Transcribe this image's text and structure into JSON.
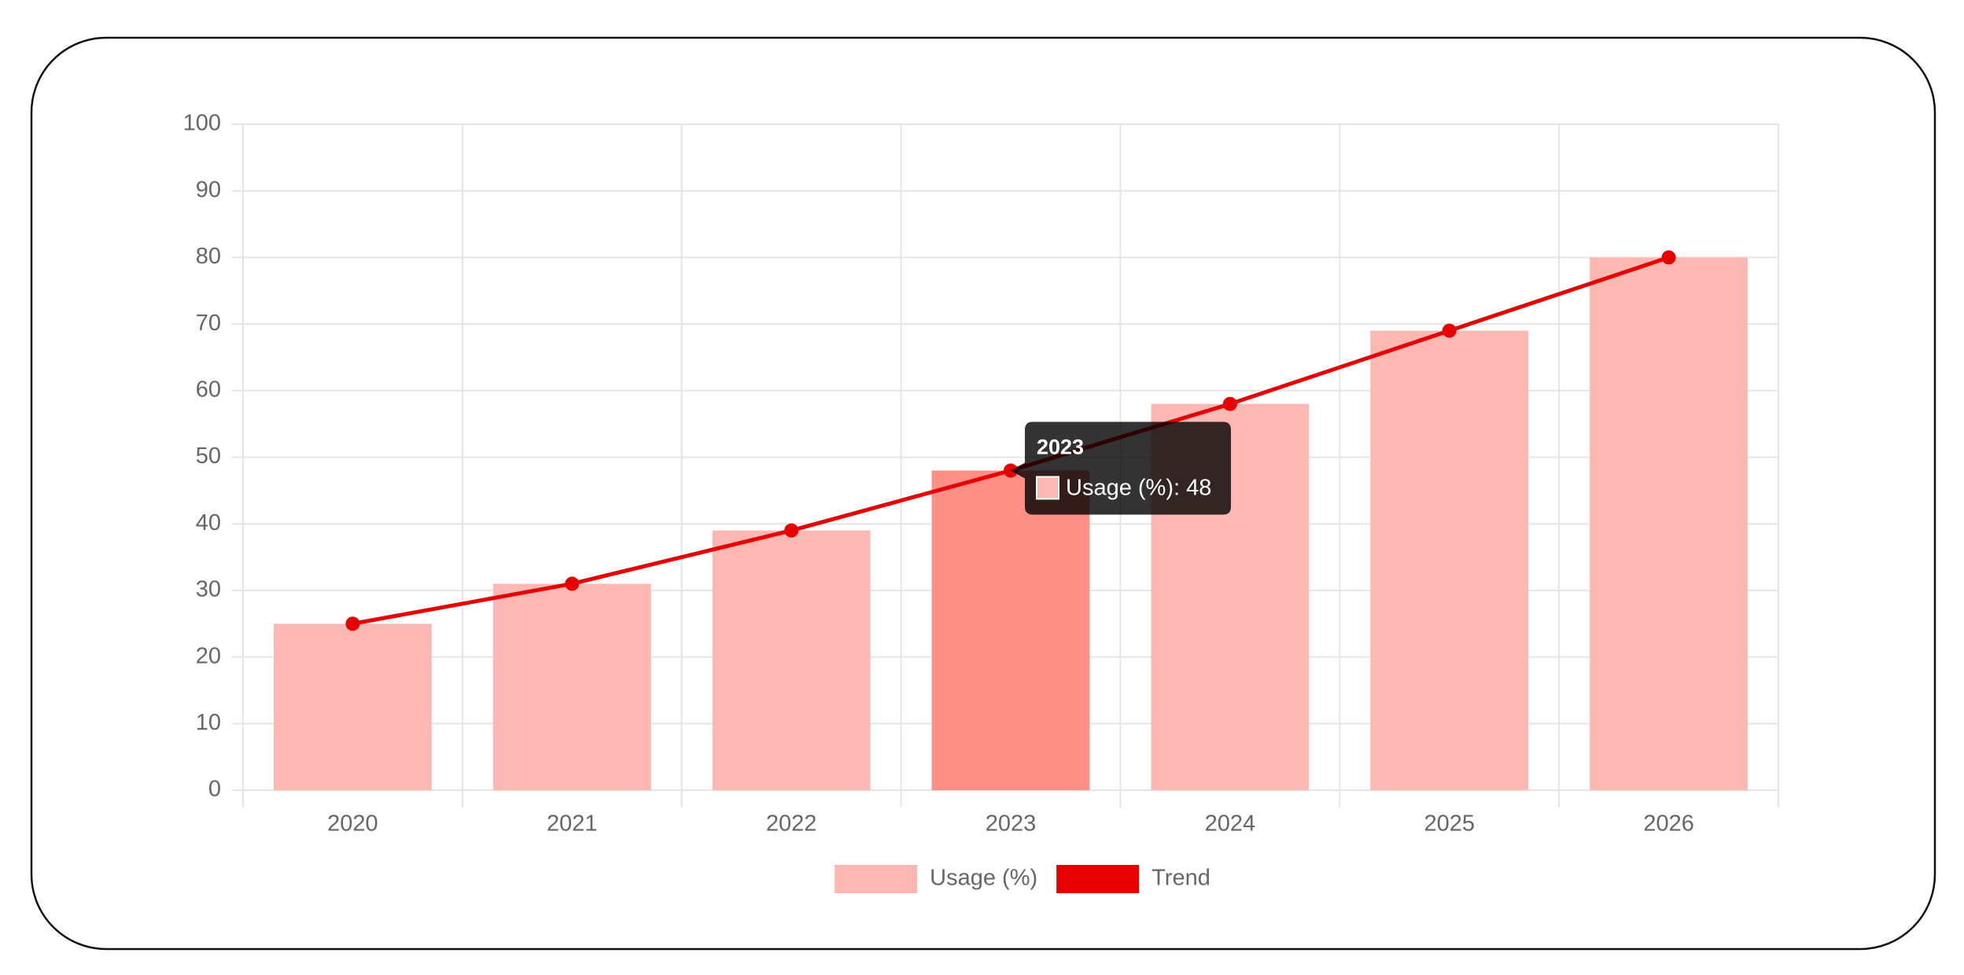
{
  "chart_data": {
    "type": "bar",
    "categories": [
      "2020",
      "2021",
      "2022",
      "2023",
      "2024",
      "2025",
      "2026"
    ],
    "series": [
      {
        "name": "Usage (%)",
        "type": "bar",
        "color": "#fdb8b3",
        "values": [
          25,
          31,
          39,
          48,
          58,
          69,
          80
        ]
      },
      {
        "name": "Trend",
        "type": "line",
        "color": "#e60000",
        "values": [
          25,
          31,
          39,
          48,
          58,
          69,
          80
        ]
      }
    ],
    "ylim": [
      0,
      100
    ],
    "yticks": [
      0,
      10,
      20,
      30,
      40,
      50,
      60,
      70,
      80,
      90,
      100
    ],
    "grid": true,
    "legend": "bottom",
    "tooltip": {
      "category": 3,
      "series": 0
    }
  }
}
